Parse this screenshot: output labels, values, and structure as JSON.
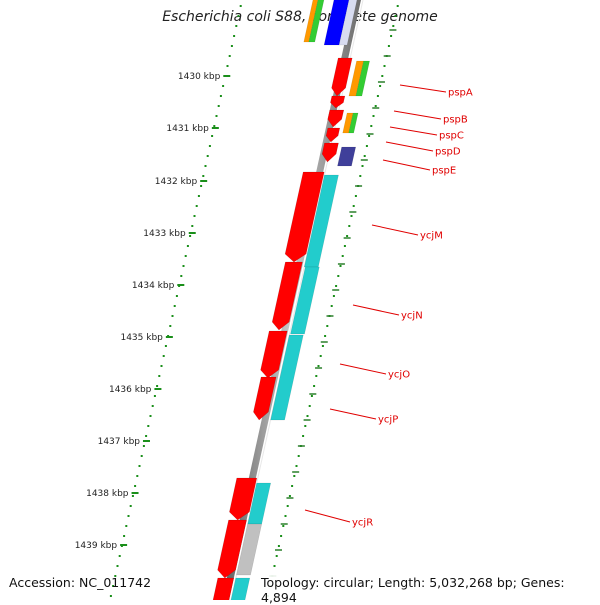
{
  "title": "Escherichia coli S88, complete genome",
  "footer": {
    "accession": "Accession: NC_011742",
    "stats": "Topology: circular; Length: 5,032,268 bp; Genes: 4,894"
  },
  "ticks": [
    {
      "label": "1430 kbp"
    },
    {
      "label": "1431 kbp"
    },
    {
      "label": "1432 kbp"
    },
    {
      "label": "1433 kbp"
    },
    {
      "label": "1434 kbp"
    },
    {
      "label": "1435 kbp"
    },
    {
      "label": "1436 kbp"
    },
    {
      "label": "1437 kbp"
    },
    {
      "label": "1438 kbp"
    },
    {
      "label": "1439 kbp"
    }
  ],
  "gene_labels": [
    "pspA",
    "pspB",
    "pspC",
    "pspD",
    "pspE",
    "ycjM",
    "ycjN",
    "ycjO",
    "ycjP",
    "ycjR"
  ],
  "colors": {
    "backbone": "#8a8a8a",
    "dots": "#1a8f1a",
    "cds": "#ff0000",
    "cog_cyan": "#22cccc",
    "cog_orange": "#ff9900",
    "cog_green": "#33cc33",
    "cog_blue": "#0000ff",
    "cog_navy": "#3f3f9a",
    "cog_gray": "#c0c0c0",
    "label": "#e00000"
  }
}
